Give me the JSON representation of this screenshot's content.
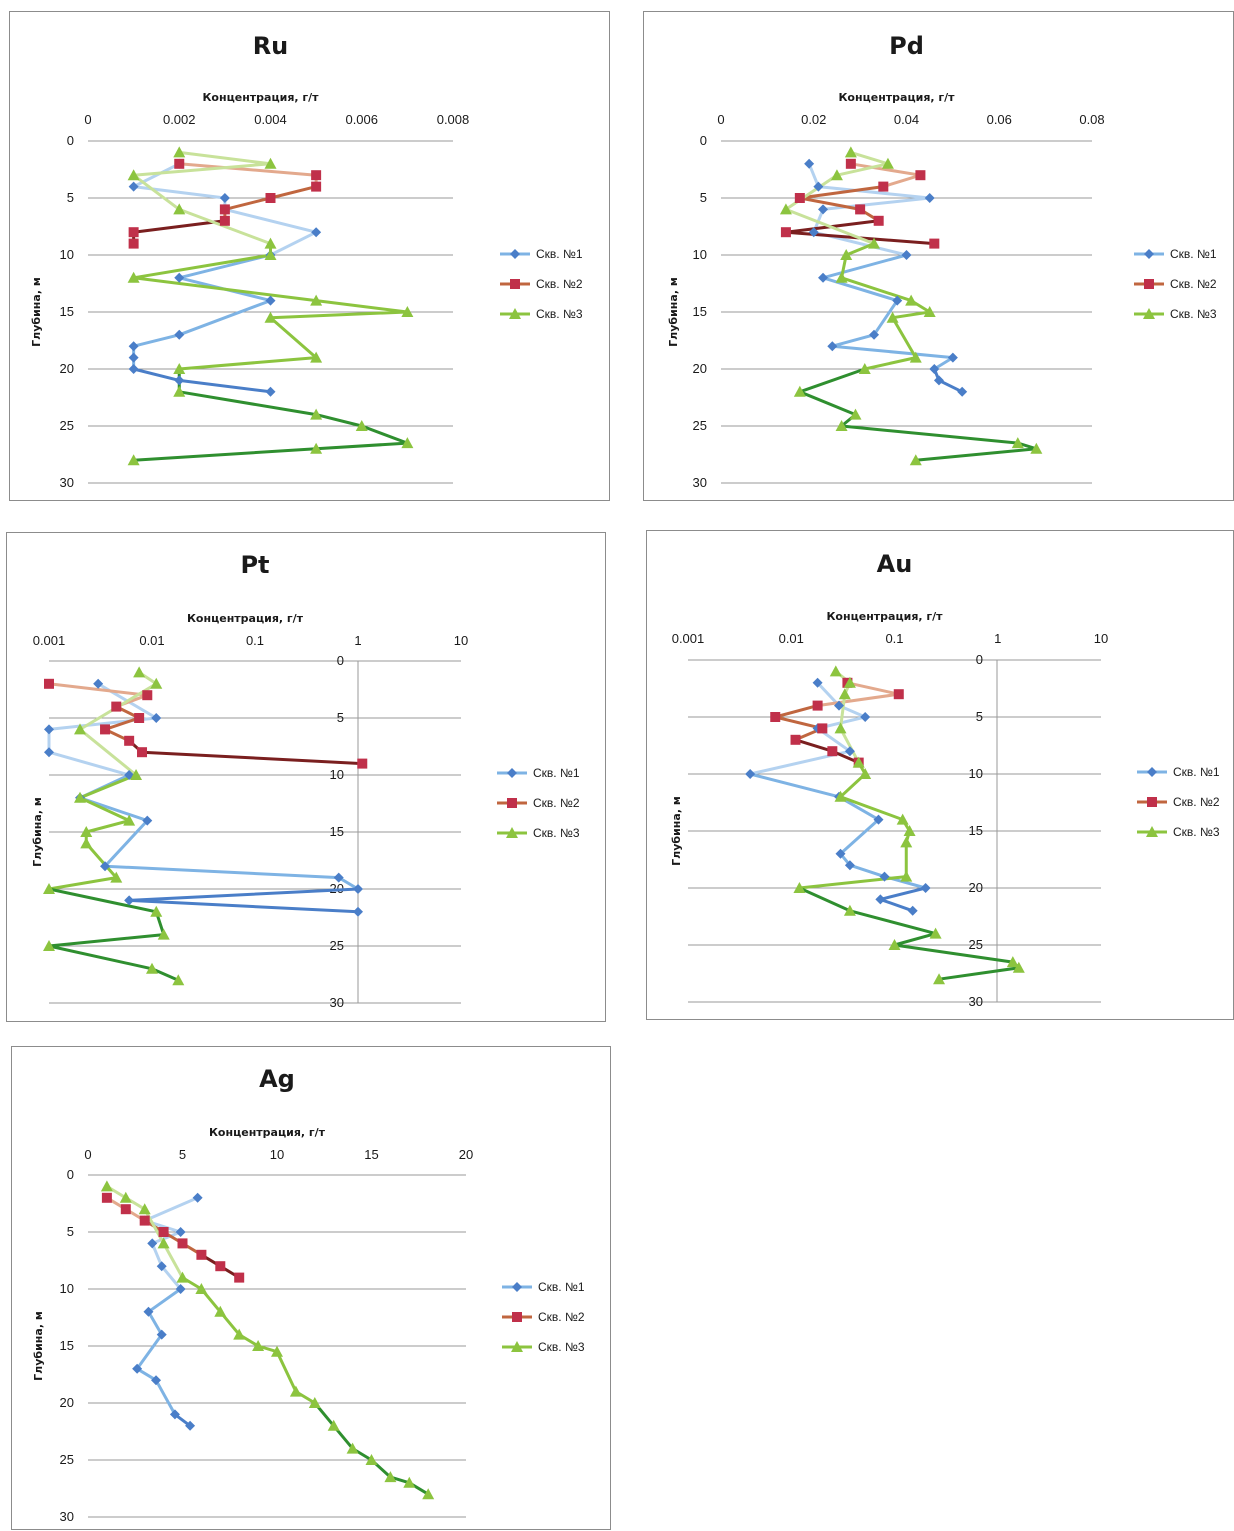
{
  "axis_title": "Концентрация, г/т",
  "depth_label": "Глубина, м",
  "legend": [
    "Скв. №1",
    "Скв. №2",
    "Скв. №3"
  ],
  "colors": {
    "s1": [
      "#b4d2f0",
      "#7eb3e4",
      "#4a7ec8"
    ],
    "s2": [
      "#e3a98d",
      "#c0663f",
      "#7a1f1f"
    ],
    "s3": [
      "#c8e29a",
      "#8cc43f",
      "#2f8f2f"
    ],
    "marker1": "#4a7ec8",
    "marker2": "#c0304a",
    "marker3": "#8cc43f",
    "grid": "#9a9a9a",
    "panel_border": "#8c8c8c"
  },
  "chart_data": [
    {
      "type": "line",
      "title": "Ru",
      "xlabel": "Концентрация, г/т",
      "ylabel": "Глубина, м",
      "xscale": "linear",
      "xlim": [
        0,
        0.008
      ],
      "ylim": [
        0,
        30
      ],
      "y_inverted": true,
      "legend_position": "right",
      "x_ticks": [
        "0",
        "0.002",
        "0.004",
        "0.006",
        "0.008"
      ],
      "y_ticks": [
        "0",
        "5",
        "10",
        "15",
        "20",
        "25",
        "30"
      ],
      "series": [
        {
          "name": "Скв. №1",
          "points": [
            [
              0.002,
              2
            ],
            [
              0.001,
              4
            ],
            [
              0.003,
              5
            ],
            [
              0.003,
              6
            ],
            [
              0.005,
              8
            ],
            [
              0.004,
              10
            ],
            [
              0.002,
              12
            ],
            [
              0.004,
              14
            ],
            [
              0.002,
              17
            ],
            [
              0.001,
              18
            ],
            [
              0.001,
              19
            ],
            [
              0.001,
              20
            ],
            [
              0.002,
              21
            ],
            [
              0.004,
              22
            ]
          ]
        },
        {
          "name": "Скв. №2",
          "points": [
            [
              0.002,
              2
            ],
            [
              0.005,
              3
            ],
            [
              0.005,
              4
            ],
            [
              0.004,
              5
            ],
            [
              0.003,
              6
            ],
            [
              0.003,
              7
            ],
            [
              0.001,
              8
            ],
            [
              0.001,
              9
            ]
          ]
        },
        {
          "name": "Скв. №3",
          "points": [
            [
              0.002,
              1
            ],
            [
              0.004,
              2
            ],
            [
              0.001,
              3
            ],
            [
              0.002,
              6
            ],
            [
              0.004,
              9
            ],
            [
              0.004,
              10
            ],
            [
              0.001,
              12
            ],
            [
              0.005,
              14
            ],
            [
              0.007,
              15
            ],
            [
              0.004,
              15.5
            ],
            [
              0.005,
              19
            ],
            [
              0.002,
              20
            ],
            [
              0.002,
              22
            ],
            [
              0.005,
              24
            ],
            [
              0.006,
              25
            ],
            [
              0.007,
              26.5
            ],
            [
              0.005,
              27
            ],
            [
              0.001,
              28
            ]
          ]
        }
      ]
    },
    {
      "type": "line",
      "title": "Pd",
      "xlabel": "Концентрация, г/т",
      "ylabel": "Глубина, м",
      "xscale": "linear",
      "xlim": [
        0,
        0.08
      ],
      "ylim": [
        0,
        30
      ],
      "y_inverted": true,
      "legend_position": "right",
      "x_ticks": [
        "0",
        "0.02",
        "0.04",
        "0.06",
        "0.08"
      ],
      "y_ticks": [
        "0",
        "5",
        "10",
        "15",
        "20",
        "25",
        "30"
      ],
      "series": [
        {
          "name": "Скв. №1",
          "points": [
            [
              0.019,
              2
            ],
            [
              0.021,
              4
            ],
            [
              0.045,
              5
            ],
            [
              0.022,
              6
            ],
            [
              0.02,
              8
            ],
            [
              0.04,
              10
            ],
            [
              0.022,
              12
            ],
            [
              0.038,
              14
            ],
            [
              0.033,
              17
            ],
            [
              0.024,
              18
            ],
            [
              0.05,
              19
            ],
            [
              0.046,
              20
            ],
            [
              0.047,
              21
            ],
            [
              0.052,
              22
            ]
          ]
        },
        {
          "name": "Скв. №2",
          "points": [
            [
              0.028,
              2
            ],
            [
              0.043,
              3
            ],
            [
              0.035,
              4
            ],
            [
              0.017,
              5
            ],
            [
              0.03,
              6
            ],
            [
              0.034,
              7
            ],
            [
              0.014,
              8
            ],
            [
              0.046,
              9
            ]
          ]
        },
        {
          "name": "Скв. №3",
          "points": [
            [
              0.028,
              1
            ],
            [
              0.036,
              2
            ],
            [
              0.025,
              3
            ],
            [
              0.014,
              6
            ],
            [
              0.033,
              9
            ],
            [
              0.027,
              10
            ],
            [
              0.026,
              12
            ],
            [
              0.041,
              14
            ],
            [
              0.045,
              15
            ],
            [
              0.037,
              15.5
            ],
            [
              0.042,
              19
            ],
            [
              0.031,
              20
            ],
            [
              0.017,
              22
            ],
            [
              0.029,
              24
            ],
            [
              0.026,
              25
            ],
            [
              0.064,
              26.5
            ],
            [
              0.068,
              27
            ],
            [
              0.042,
              28
            ]
          ]
        }
      ]
    },
    {
      "type": "line",
      "title": "Pt",
      "xlabel": "Концентрация, г/т",
      "ylabel": "Глубина, м",
      "xscale": "log",
      "xlim": [
        0.001,
        10
      ],
      "ylim": [
        0,
        30
      ],
      "y_inverted": true,
      "legend_position": "right",
      "x_ticks": [
        "0.001",
        "0.01",
        "0.1",
        "1",
        "10"
      ],
      "y_ticks": [
        "0",
        "5",
        "10",
        "15",
        "20",
        "25",
        "30"
      ],
      "series": [
        {
          "name": "Скв. №1",
          "points": [
            [
              0.003,
              2
            ],
            [
              0.011,
              5
            ],
            [
              0.001,
              6
            ],
            [
              0.001,
              8
            ],
            [
              0.006,
              10
            ],
            [
              0.002,
              12
            ],
            [
              0.009,
              14
            ],
            [
              0.0035,
              18
            ],
            [
              0.65,
              19
            ],
            [
              1.0,
              20
            ],
            [
              0.006,
              21
            ],
            [
              1.0,
              22
            ]
          ]
        },
        {
          "name": "Скв. №2",
          "points": [
            [
              0.001,
              2
            ],
            [
              0.009,
              3
            ],
            [
              0.0045,
              4
            ],
            [
              0.0075,
              5
            ],
            [
              0.0035,
              6
            ],
            [
              0.006,
              7
            ],
            [
              0.008,
              8
            ],
            [
              1.1,
              9
            ]
          ]
        },
        {
          "name": "Скв. №3",
          "points": [
            [
              0.0075,
              1
            ],
            [
              0.011,
              2
            ],
            [
              0.002,
              6
            ],
            [
              0.007,
              10
            ],
            [
              0.002,
              12
            ],
            [
              0.006,
              14
            ],
            [
              0.0023,
              15
            ],
            [
              0.0023,
              16
            ],
            [
              0.0045,
              19
            ],
            [
              0.001,
              20
            ],
            [
              0.011,
              22
            ],
            [
              0.013,
              24
            ],
            [
              0.001,
              25
            ],
            [
              0.01,
              27
            ],
            [
              0.018,
              28
            ]
          ]
        }
      ]
    },
    {
      "type": "line",
      "title": "Au",
      "xlabel": "Концентрация, г/т",
      "ylabel": "Глубина, м",
      "xscale": "log",
      "xlim": [
        0.001,
        10
      ],
      "ylim": [
        0,
        30
      ],
      "y_inverted": true,
      "legend_position": "right",
      "x_ticks": [
        "0.001",
        "0.01",
        "0.1",
        "1",
        "10"
      ],
      "y_ticks": [
        "0",
        "5",
        "10",
        "15",
        "20",
        "25",
        "30"
      ],
      "series": [
        {
          "name": "Скв. №1",
          "points": [
            [
              0.018,
              2
            ],
            [
              0.029,
              4
            ],
            [
              0.052,
              5
            ],
            [
              0.018,
              6
            ],
            [
              0.037,
              8
            ],
            [
              0.004,
              10
            ],
            [
              0.029,
              12
            ],
            [
              0.07,
              14
            ],
            [
              0.03,
              17
            ],
            [
              0.037,
              18
            ],
            [
              0.08,
              19
            ],
            [
              0.2,
              20
            ],
            [
              0.073,
              21
            ],
            [
              0.15,
              22
            ]
          ]
        },
        {
          "name": "Скв. №2",
          "points": [
            [
              0.035,
              2
            ],
            [
              0.11,
              3
            ],
            [
              0.018,
              4
            ],
            [
              0.007,
              5
            ],
            [
              0.02,
              6
            ],
            [
              0.011,
              7
            ],
            [
              0.025,
              8
            ],
            [
              0.045,
              9
            ]
          ]
        },
        {
          "name": "Скв. №3",
          "points": [
            [
              0.027,
              1
            ],
            [
              0.037,
              2
            ],
            [
              0.033,
              3
            ],
            [
              0.03,
              6
            ],
            [
              0.045,
              9
            ],
            [
              0.052,
              10
            ],
            [
              0.03,
              12
            ],
            [
              0.12,
              14
            ],
            [
              0.14,
              15
            ],
            [
              0.13,
              16
            ],
            [
              0.13,
              19
            ],
            [
              0.012,
              20
            ],
            [
              0.037,
              22
            ],
            [
              0.25,
              24
            ],
            [
              0.1,
              25
            ],
            [
              1.4,
              26.5
            ],
            [
              1.6,
              27
            ],
            [
              0.27,
              28
            ]
          ]
        }
      ]
    },
    {
      "type": "line",
      "title": "Ag",
      "xlabel": "Концентрация, г/т",
      "ylabel": "Глубина, м",
      "xscale": "linear",
      "xlim": [
        0,
        20
      ],
      "ylim": [
        0,
        30
      ],
      "y_inverted": true,
      "legend_position": "right",
      "x_ticks": [
        "0",
        "5",
        "10",
        "15",
        "20"
      ],
      "y_ticks": [
        "0",
        "5",
        "10",
        "15",
        "20",
        "25",
        "30"
      ],
      "series": [
        {
          "name": "Скв. №1",
          "points": [
            [
              5.8,
              2
            ],
            [
              3,
              4
            ],
            [
              4.9,
              5
            ],
            [
              3.4,
              6
            ],
            [
              3.9,
              8
            ],
            [
              4.9,
              10
            ],
            [
              3.2,
              12
            ],
            [
              3.9,
              14
            ],
            [
              2.6,
              17
            ],
            [
              3.6,
              18
            ],
            [
              4.6,
              21
            ],
            [
              5.4,
              22
            ]
          ]
        },
        {
          "name": "Скв. №2",
          "points": [
            [
              1,
              2
            ],
            [
              2,
              3
            ],
            [
              3,
              4
            ],
            [
              4,
              5
            ],
            [
              5,
              6
            ],
            [
              6,
              7
            ],
            [
              7,
              8
            ],
            [
              8,
              9
            ]
          ]
        },
        {
          "name": "Скв. №3",
          "points": [
            [
              1,
              1
            ],
            [
              2,
              2
            ],
            [
              3,
              3
            ],
            [
              4,
              6
            ],
            [
              5,
              9
            ],
            [
              6,
              10
            ],
            [
              7,
              12
            ],
            [
              8,
              14
            ],
            [
              9,
              15
            ],
            [
              10,
              15.5
            ],
            [
              11,
              19
            ],
            [
              12,
              20
            ],
            [
              13,
              22
            ],
            [
              14,
              24
            ],
            [
              15,
              25
            ],
            [
              16,
              26.5
            ],
            [
              17,
              27
            ],
            [
              18,
              28
            ]
          ]
        }
      ]
    }
  ]
}
